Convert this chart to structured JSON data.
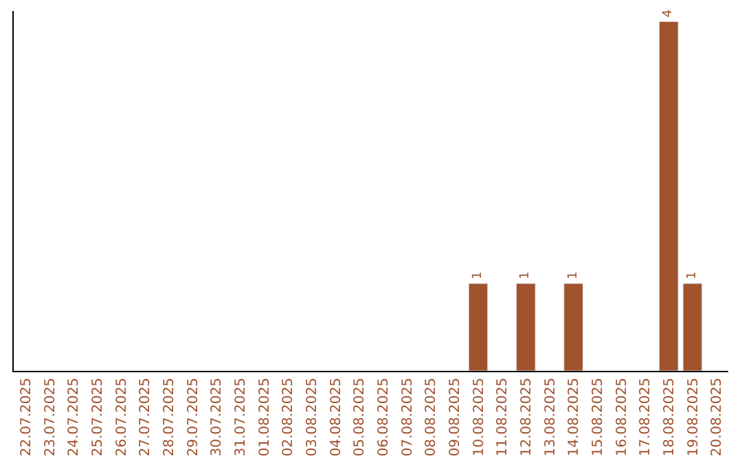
{
  "chart_data": {
    "type": "bar",
    "categories": [
      "22.07.2025",
      "23.07.2025",
      "24.07.2025",
      "25.07.2025",
      "26.07.2025",
      "27.07.2025",
      "28.07.2025",
      "29.07.2025",
      "30.07.2025",
      "31.07.2025",
      "01.08.2025",
      "02.08.2025",
      "03.08.2025",
      "04.08.2025",
      "05.08.2025",
      "06.08.2025",
      "07.08.2025",
      "08.08.2025",
      "09.08.2025",
      "10.08.2025",
      "11.08.2025",
      "12.08.2025",
      "13.08.2025",
      "14.08.2025",
      "15.08.2025",
      "16.08.2025",
      "17.08.2025",
      "18.08.2025",
      "19.08.2025",
      "20.08.2025"
    ],
    "values": [
      null,
      null,
      null,
      null,
      null,
      null,
      null,
      null,
      null,
      null,
      null,
      null,
      null,
      null,
      null,
      null,
      null,
      null,
      null,
      1,
      null,
      1,
      null,
      1,
      null,
      null,
      null,
      4,
      1,
      null
    ],
    "data_labels": true,
    "color": "#a0522d",
    "grid": false,
    "legend": false,
    "tick_labels": "x"
  }
}
